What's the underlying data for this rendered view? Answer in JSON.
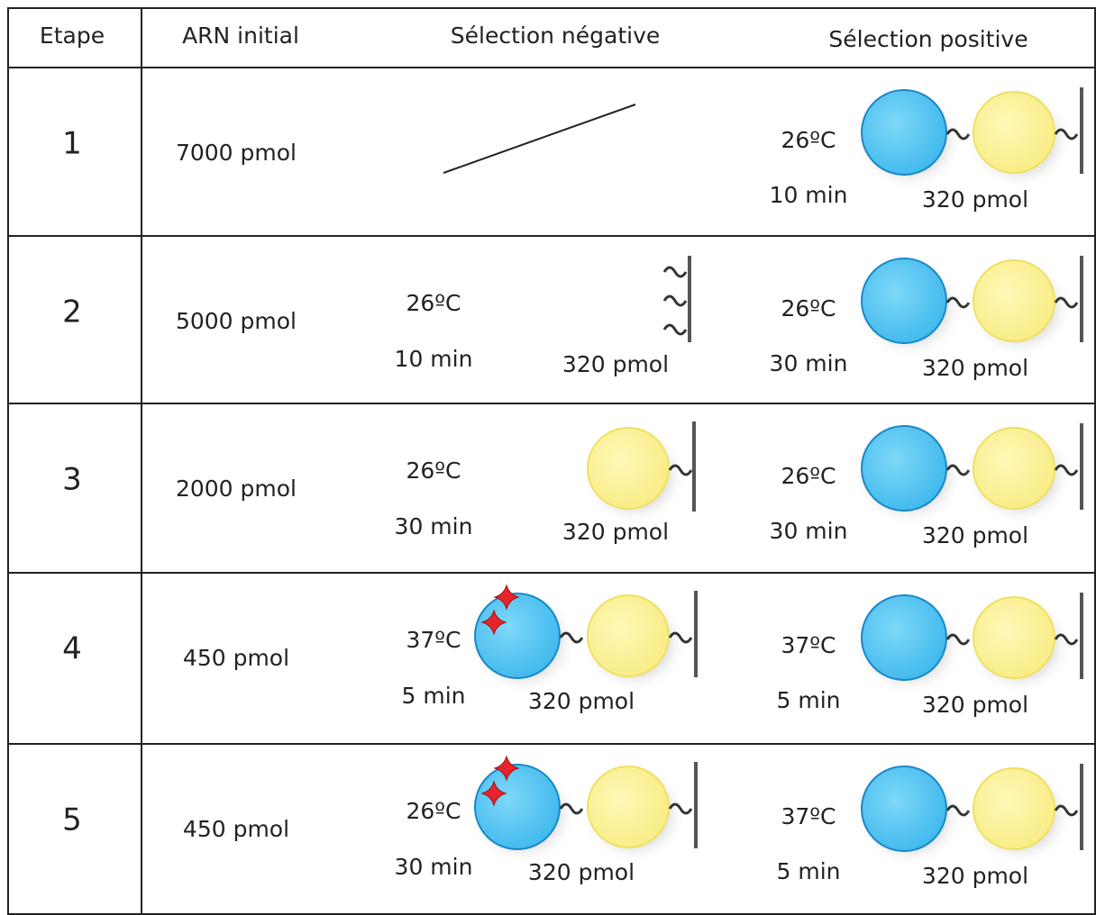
{
  "header": [
    "Etape",
    "ARN initial",
    "Sélection négative",
    "Sélection positive"
  ],
  "rows": [
    {
      "step": "1",
      "arn": "7000 pmol",
      "positive": {
        "temperature": "26ºC",
        "time": "10 min",
        "amount": "320 pmol"
      }
    },
    {
      "step": "2",
      "arn": "5000 pmol",
      "negative": {
        "temperature": "26ºC",
        "time": "10 min",
        "amount": "320 pmol"
      },
      "positive": {
        "temperature": "26ºC",
        "time": "30 min",
        "amount": "320 pmol"
      }
    },
    {
      "step": "3",
      "arn": "2000 pmol",
      "negative": {
        "temperature": "26ºC",
        "time": "30 min",
        "amount": "320 pmol"
      },
      "positive": {
        "temperature": "26ºC",
        "time": "30 min",
        "amount": "320 pmol"
      }
    },
    {
      "step": "4",
      "arn": "450 pmol",
      "negative": {
        "temperature": "37ºC",
        "time": "5 min",
        "amount": "320 pmol"
      },
      "positive": {
        "temperature": "37ºC",
        "time": "5 min",
        "amount": "320 pmol"
      }
    },
    {
      "step": "5",
      "arn": "450 pmol",
      "negative": {
        "temperature": "26ºC",
        "time": "30 min",
        "amount": "320 pmol"
      },
      "positive": {
        "temperature": "37ºC",
        "time": "5 min",
        "amount": "320 pmol"
      }
    }
  ]
}
